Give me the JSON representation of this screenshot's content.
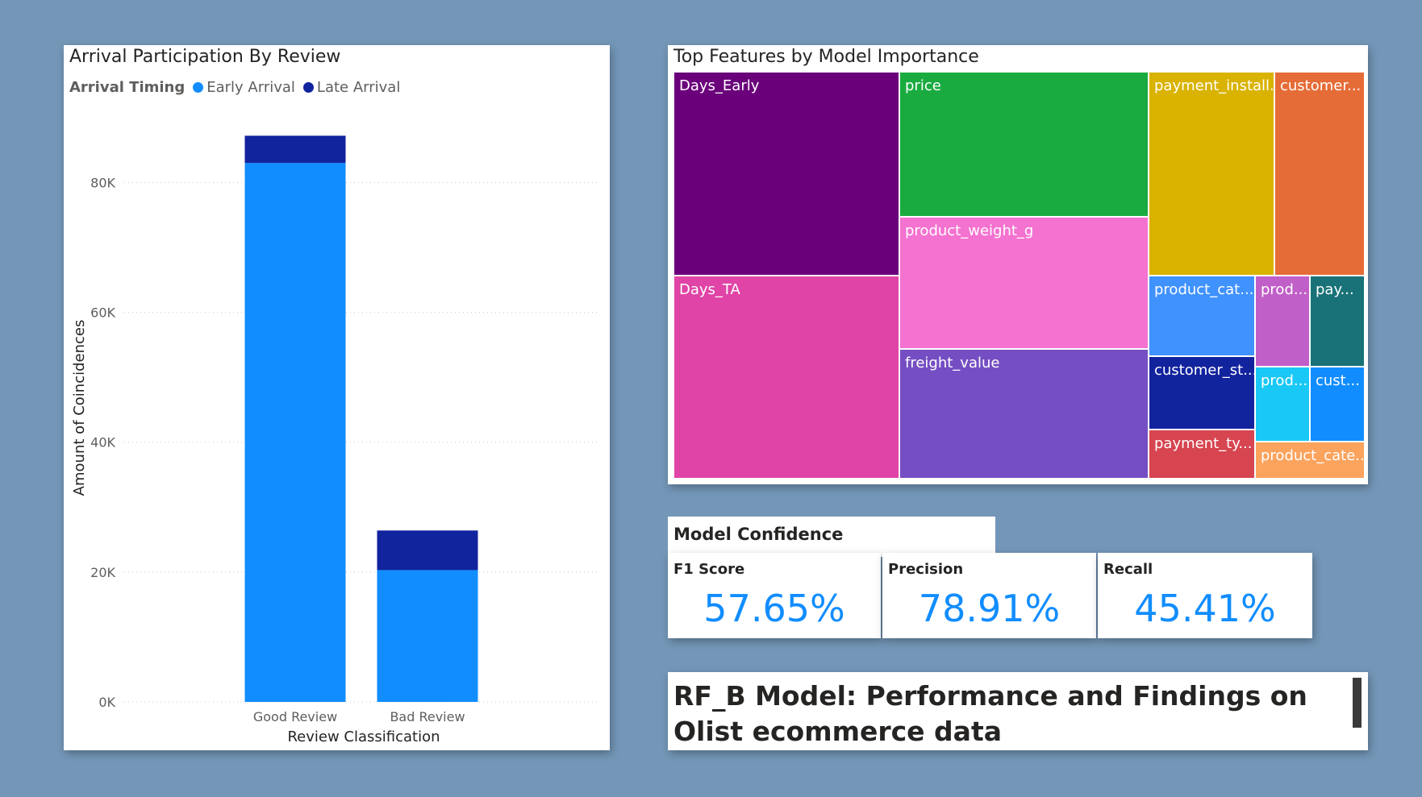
{
  "bar_chart": {
    "title": "Arrival Participation By Review",
    "legend_title": "Arrival Timing",
    "chart_data": {
      "type": "bar",
      "stacked": true,
      "categories": [
        "Good Review",
        "Bad Review"
      ],
      "series": [
        {
          "name": "Early Arrival",
          "color": "#118dff",
          "values": [
            83000,
            20300
          ]
        },
        {
          "name": "Late Arrival",
          "color": "#12239e",
          "values": [
            4200,
            6100
          ]
        }
      ],
      "xlabel": "Review Classification",
      "ylabel": "Amount of Coincidences",
      "ylim": [
        0,
        87500
      ],
      "yticks": [
        0,
        20000,
        40000,
        60000,
        80000
      ],
      "ytick_labels": [
        "0K",
        "20K",
        "40K",
        "60K",
        "80K"
      ],
      "grid": true,
      "legend_position": "top-left"
    }
  },
  "treemap": {
    "title": "Top Features by Model Importance",
    "tiles": [
      {
        "label": "Days_Early",
        "color": "#6b007b"
      },
      {
        "label": "Days_TA",
        "color": "#e044a7"
      },
      {
        "label": "price",
        "color": "#1aab40"
      },
      {
        "label": "product_weight_g",
        "color": "#f472d0"
      },
      {
        "label": "freight_value",
        "color": "#744ec2"
      },
      {
        "label": "payment_install...",
        "color": "#d9b300"
      },
      {
        "label": "customer...",
        "color": "#e66c37"
      },
      {
        "label": "product_cat...",
        "color": "#4092ff"
      },
      {
        "label": "customer_st...",
        "color": "#12239e"
      },
      {
        "label": "payment_ty...",
        "color": "#d64550"
      },
      {
        "label": "prod...",
        "color": "#c15fc8"
      },
      {
        "label": "pay...",
        "color": "#197278"
      },
      {
        "label": "prod...",
        "color": "#1ac8f5"
      },
      {
        "label": "cust...",
        "color": "#118dff"
      },
      {
        "label": "product_cate...",
        "color": "#fca35d"
      }
    ]
  },
  "model_confidence": {
    "title": "Model Confidence",
    "kpis": [
      {
        "label": "F1 Score",
        "value": "57.65%"
      },
      {
        "label": "Precision",
        "value": "78.91%"
      },
      {
        "label": "Recall",
        "value": "45.41%"
      }
    ]
  },
  "heading": {
    "text": "RF_B Model: Performance and Findings on Olist ecommerce data"
  }
}
